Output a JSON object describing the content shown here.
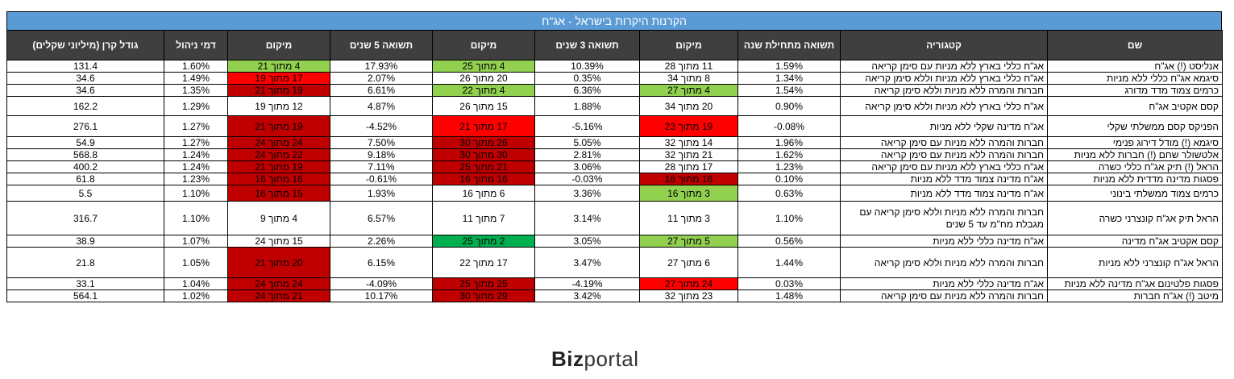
{
  "title": "הקרנות היקרות בישראל - אג\"ח",
  "headers": [
    "שם",
    "קטגוריה",
    "תשואה מתחילת שנה",
    "מיקום",
    "תשואה 3 שנים",
    "מיקום",
    "תשואה 5 שנים",
    "מיקום",
    "דמי ניהול",
    "גודל קרן (מיליוני שקלים)"
  ],
  "rows": [
    {
      "name": "אנליסט (!) אג\"ח",
      "cat": "אג\"ח כללי בארץ ללא מניות עם סימן קריאה",
      "ytd": "1.59%",
      "r1": "11 מתוך 28",
      "y3": "10.39%",
      "r3": "4 מתוך 25",
      "y5": "17.93%",
      "r5": "4 מתוך 21",
      "fee": "1.60%",
      "size": "131.4",
      "c1": "",
      "c3": "green",
      "c5": "green",
      "h": 14
    },
    {
      "name": "סיגמא אג\"ח כללי ללא מניות",
      "cat": "אג\"ח כללי בארץ ללא מניות וללא סימן קריאה",
      "ytd": "1.34%",
      "r1": "8 מתוך 34",
      "y3": "0.35%",
      "r3": "20 מתוך 26",
      "y5": "2.07%",
      "r5": "17 מתוך 19",
      "fee": "1.49%",
      "size": "34.6",
      "c1": "",
      "c3": "",
      "c5": "red",
      "h": 14
    },
    {
      "name": "כרמים צמוד מדד מדורג",
      "cat": "חברות והמרה ללא מניות וללא סימן קריאה",
      "ytd": "1.54%",
      "r1": "4 מתוך 27",
      "y3": "6.36%",
      "r3": "4 מתוך 22",
      "y5": "6.61%",
      "r5": "19 מתוך 21",
      "fee": "1.35%",
      "size": "34.6",
      "c1": "green",
      "c3": "green",
      "c5": "dred",
      "h": 14
    },
    {
      "name": "קסם אקטיב אג\"ח",
      "cat": "אג\"ח כללי בארץ ללא מניות וללא סימן קריאה",
      "ytd": "0.90%",
      "r1": "20 מתוך 34",
      "y3": "1.88%",
      "r3": "15 מתוך 26",
      "y5": "4.87%",
      "r5": "12 מתוך 19",
      "fee": "1.29%",
      "size": "162.2",
      "c1": "",
      "c3": "",
      "c5": "",
      "h": 24
    },
    {
      "name": "הפניקס קסם ממשלתי שקלי",
      "cat": "אג\"ח מדינה שקלי ללא מניות",
      "ytd": "-0.08%",
      "r1": "19 מתוך 23",
      "y3": "-5.16%",
      "r3": "17 מתוך 21",
      "y5": "-4.52%",
      "r5": "19 מתוך 21",
      "fee": "1.27%",
      "size": "276.1",
      "c1": "red",
      "c3": "red",
      "c5": "dred",
      "h": 26
    },
    {
      "name": "סיגמא (!) מודל דירוג פנימי",
      "cat": "חברות והמרה ללא מניות עם סימן קריאה",
      "ytd": "1.96%",
      "r1": "14 מתוך 32",
      "y3": "5.05%",
      "r3": "26 מתוך 30",
      "y5": "7.50%",
      "r5": "24 מתוך 24",
      "fee": "1.27%",
      "size": "54.9",
      "c1": "",
      "c3": "dred",
      "c5": "dred",
      "h": 15
    },
    {
      "name": "אלטשולר שחם (!) חברות ללא מניות",
      "cat": "חברות והמרה ללא מניות עם סימן קריאה",
      "ytd": "1.62%",
      "r1": "21 מתוך 32",
      "y3": "2.81%",
      "r3": "30 מתוך 30",
      "y5": "9.18%",
      "r5": "22 מתוך 24",
      "fee": "1.24%",
      "size": "568.8",
      "c1": "",
      "c3": "dred",
      "c5": "dred",
      "h": 15
    },
    {
      "name": "הראל (!) תיק אג\"ח כללי כשרה",
      "cat": "אג\"ח כללי בארץ ללא מניות עם סימן קריאה",
      "ytd": "1.23%",
      "r1": "17 מתוך 28",
      "y3": "3.06%",
      "r3": "21 מתוך 25",
      "y5": "7.11%",
      "r5": "19 מתוך 21",
      "fee": "1.24%",
      "size": "400.2",
      "c1": "",
      "c3": "dred",
      "c5": "dred",
      "h": 15
    },
    {
      "name": "פסגות מדינה מדדית ללא מניות",
      "cat": "אג\"ח מדינה צמוד מדד ללא מניות",
      "ytd": "0.10%",
      "r1": "16 מתוך 16",
      "y3": "-0.03%",
      "r3": "16 מתוך 16",
      "y5": "-0.61%",
      "r5": "16 מתוך 16",
      "fee": "1.23%",
      "size": "61.8",
      "c1": "dred",
      "c3": "dred",
      "c5": "dred",
      "h": 15
    },
    {
      "name": "כרמים צמוד ממשלתי בינוני",
      "cat": "אג\"ח מדינה צמוד מדד ללא מניות",
      "ytd": "0.63%",
      "r1": "3 מתוך 16",
      "y3": "3.36%",
      "r3": "6 מתוך 16",
      "y5": "1.93%",
      "r5": "15 מתוך 16",
      "fee": "1.10%",
      "size": "5.5",
      "c1": "green",
      "c3": "",
      "c5": "dred",
      "h": 20
    },
    {
      "name": "הראל תיק אג\"ח קונצרני כשרה",
      "cat": "חברות והמרה ללא מניות וללא סימן קריאה עם מגבלת מח\"מ עד 5 שנים",
      "ytd": "1.10%",
      "r1": "3 מתוך 11",
      "y3": "3.14%",
      "r3": "7 מתוך 11",
      "y5": "6.57%",
      "r5": "4 מתוך 9",
      "fee": "1.10%",
      "size": "316.7",
      "c1": "",
      "c3": "",
      "c5": "",
      "h": 42,
      "wrap": true
    },
    {
      "name": "קסם אקטיב אג\"ח מדינה",
      "cat": "אג\"ח מדינה כללי ללא מניות",
      "ytd": "0.56%",
      "r1": "5 מתוך 27",
      "y3": "3.05%",
      "r3": "2 מתוך 25",
      "y5": "2.26%",
      "r5": "15 מתוך 24",
      "fee": "1.07%",
      "size": "38.9",
      "c1": "green",
      "c3": "dgreen",
      "c5": "",
      "h": 15
    },
    {
      "name": "הראל אג\"ח קונצרני ללא מניות",
      "cat": "חברות והמרה ללא מניות וללא סימן קריאה",
      "ytd": "1.44%",
      "r1": "6 מתוך 27",
      "y3": "3.47%",
      "r3": "17 מתוך 22",
      "y5": "6.15%",
      "r5": "20 מתוך 21",
      "fee": "1.05%",
      "size": "21.8",
      "c1": "",
      "c3": "",
      "c5": "dred",
      "h": 38
    },
    {
      "name": "פסגות פלטינום אג\"ח מדינה ללא מניות",
      "cat": "אג\"ח מדינה כללי ללא מניות",
      "ytd": "0.03%",
      "r1": "24 מתוך 27",
      "y3": "-4.19%",
      "r3": "25 מתוך 25",
      "y5": "-4.09%",
      "r5": "24 מתוך 24",
      "fee": "1.04%",
      "size": "33.1",
      "c1": "red",
      "c3": "dred",
      "c5": "dred",
      "h": 15
    },
    {
      "name": "מיטב (!) אג\"ח חברות",
      "cat": "חברות והמרה ללא מניות עם סימן קריאה",
      "ytd": "1.48%",
      "r1": "23 מתוך 32",
      "y3": "3.42%",
      "r3": "29 מתוך 30",
      "y5": "10.17%",
      "r5": "21 מתוך 24",
      "fee": "1.02%",
      "size": "564.1",
      "c1": "",
      "c3": "dred",
      "c5": "dred",
      "h": 15
    }
  ],
  "logo": {
    "bold": "Biz",
    "light": "portal"
  }
}
